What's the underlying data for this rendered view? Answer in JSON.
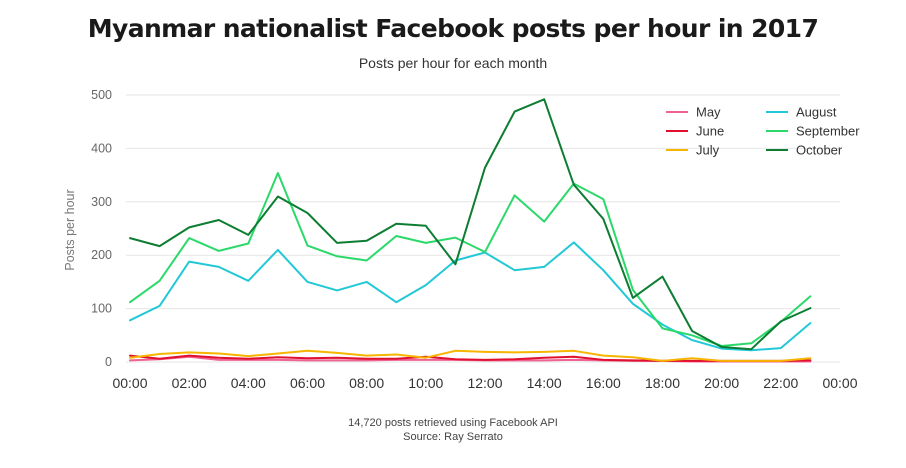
{
  "title": "Myanmar nationalist Facebook posts per hour in 2017",
  "subtitle": "Posts per hour for each month",
  "footer": {
    "line1": "14,720 posts retrieved using Facebook API",
    "line2": "Source: Ray Serrato"
  },
  "chart_data": {
    "type": "line",
    "title": "Myanmar nationalist Facebook posts per hour in 2017",
    "subtitle": "Posts per hour for each month",
    "xlabel": "",
    "ylabel": "Posts per hour",
    "xlim": [
      0,
      24
    ],
    "ylim": [
      0,
      500
    ],
    "x_ticks": [
      "00:00",
      "02:00",
      "04:00",
      "06:00",
      "08:00",
      "10:00",
      "12:00",
      "14:00",
      "16:00",
      "18:00",
      "20:00",
      "22:00",
      "00:00"
    ],
    "y_ticks": [
      0,
      100,
      200,
      300,
      400,
      500
    ],
    "grid": "horizontal",
    "legend_position": "top-right",
    "x": [
      0,
      1,
      2,
      3,
      4,
      5,
      6,
      7,
      8,
      9,
      10,
      11,
      12,
      13,
      14,
      15,
      16,
      17,
      18,
      19,
      20,
      21,
      22,
      23
    ],
    "series": [
      {
        "name": "May",
        "color": "#f06292",
        "values": [
          3,
          5,
          10,
          4,
          4,
          4,
          3,
          3,
          3,
          4,
          4,
          4,
          3,
          3,
          3,
          4,
          3,
          2,
          2,
          1,
          1,
          1,
          1,
          1
        ]
      },
      {
        "name": "June",
        "color": "#e0102f",
        "values": [
          12,
          6,
          12,
          8,
          6,
          9,
          7,
          8,
          6,
          6,
          10,
          5,
          4,
          5,
          8,
          10,
          4,
          3,
          2,
          2,
          2,
          2,
          2,
          3
        ]
      },
      {
        "name": "July",
        "color": "#f7b500",
        "values": [
          8,
          15,
          18,
          16,
          11,
          16,
          21,
          17,
          12,
          14,
          8,
          21,
          19,
          18,
          19,
          21,
          12,
          9,
          2,
          7,
          2,
          2,
          2,
          7
        ]
      },
      {
        "name": "August",
        "color": "#22c8d6",
        "values": [
          78,
          105,
          188,
          178,
          152,
          210,
          150,
          134,
          150,
          112,
          144,
          190,
          205,
          172,
          178,
          224,
          172,
          109,
          70,
          41,
          25,
          22,
          26,
          73
        ]
      },
      {
        "name": "September",
        "color": "#2bd96a",
        "values": [
          112,
          152,
          232,
          208,
          222,
          354,
          218,
          198,
          190,
          236,
          223,
          233,
          206,
          312,
          263,
          334,
          305,
          135,
          63,
          50,
          30,
          35,
          75,
          123
        ]
      },
      {
        "name": "October",
        "color": "#0d7d32",
        "values": [
          232,
          217,
          252,
          266,
          238,
          310,
          279,
          223,
          227,
          259,
          255,
          183,
          364,
          469,
          492,
          332,
          268,
          120,
          160,
          58,
          28,
          24,
          76,
          101
        ]
      }
    ]
  }
}
